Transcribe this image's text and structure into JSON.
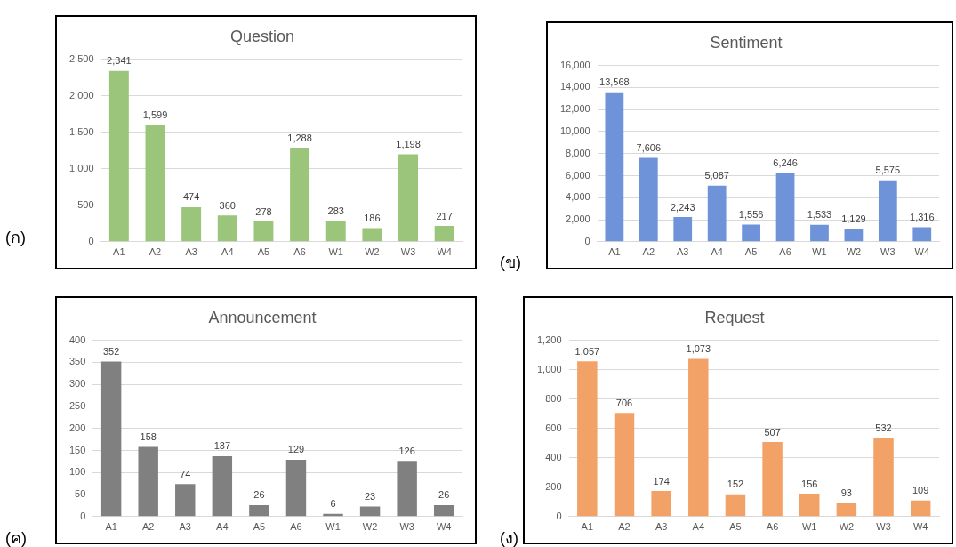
{
  "chart_data": [
    {
      "type": "bar",
      "title": "Question",
      "annotations": [
        "(ก)"
      ],
      "categories": [
        "A1",
        "A2",
        "A3",
        "A4",
        "A5",
        "A6",
        "W1",
        "W2",
        "W3",
        "W4"
      ],
      "values": [
        2341,
        1599,
        474,
        360,
        278,
        1288,
        283,
        186,
        1198,
        217
      ],
      "value_labels": [
        "2,341",
        "1,599",
        "474",
        "360",
        "278",
        "1,288",
        "283",
        "186",
        "1,198",
        "217"
      ],
      "color": "#9bc57a",
      "ylim": [
        0,
        2500
      ],
      "yticks": [
        0,
        500,
        {
          "value": 1000,
          "label": "1,000"
        },
        {
          "value": 1500,
          "label": "1,500"
        },
        {
          "value": 2000,
          "label": "2,000"
        },
        {
          "value": 2500,
          "label": "2,500"
        }
      ],
      "grid": "y"
    },
    {
      "type": "bar",
      "title": "Sentiment",
      "annotations": [
        "(ข)"
      ],
      "categories": [
        "A1",
        "A2",
        "A3",
        "A4",
        "A5",
        "A6",
        "W1",
        "W2",
        "W3",
        "W4"
      ],
      "values": [
        13568,
        7606,
        2243,
        5087,
        1556,
        6246,
        1533,
        1129,
        5575,
        1316
      ],
      "value_labels": [
        "13,568",
        "7,606",
        "2,243",
        "5,087",
        "1,556",
        "6,246",
        "1,533",
        "1,129",
        "5,575",
        "1,316"
      ],
      "color": "#6e93d8",
      "ylim": [
        0,
        16000
      ],
      "yticks": [
        0,
        {
          "value": 2000,
          "label": "2,000"
        },
        {
          "value": 4000,
          "label": "4,000"
        },
        {
          "value": 6000,
          "label": "6,000"
        },
        {
          "value": 8000,
          "label": "8,000"
        },
        {
          "value": 10000,
          "label": "10,000"
        },
        {
          "value": 12000,
          "label": "12,000"
        },
        {
          "value": 14000,
          "label": "14,000"
        },
        {
          "value": 16000,
          "label": "16,000"
        }
      ],
      "grid": "y"
    },
    {
      "type": "bar",
      "title": "Announcement",
      "annotations": [
        "(ค)"
      ],
      "categories": [
        "A1",
        "A2",
        "A3",
        "A4",
        "A5",
        "A6",
        "W1",
        "W2",
        "W3",
        "W4"
      ],
      "values": [
        352,
        158,
        74,
        137,
        26,
        129,
        6,
        23,
        126,
        26
      ],
      "data_labels": true,
      "color": "#808080",
      "ylim": [
        0,
        400
      ],
      "yticks": [
        0,
        50,
        100,
        150,
        200,
        250,
        300,
        350,
        400
      ],
      "grid": "y"
    },
    {
      "type": "bar",
      "title": "Request",
      "annotations": [
        "(ง)"
      ],
      "categories": [
        "A1",
        "A2",
        "A3",
        "A4",
        "A5",
        "A6",
        "W1",
        "W2",
        "W3",
        "W4"
      ],
      "values": [
        1057,
        706,
        174,
        1073,
        152,
        507,
        156,
        93,
        532,
        109
      ],
      "value_labels": [
        "1,057",
        "706",
        "174",
        "1,073",
        "152",
        "507",
        "156",
        "93",
        "532",
        "109"
      ],
      "color": "#f2a266",
      "ylim": [
        0,
        1200
      ],
      "yticks": [
        0,
        200,
        400,
        600,
        800,
        {
          "value": 1000,
          "label": "1,000"
        },
        {
          "value": 1200,
          "label": "1,200"
        }
      ],
      "grid": "y"
    }
  ]
}
